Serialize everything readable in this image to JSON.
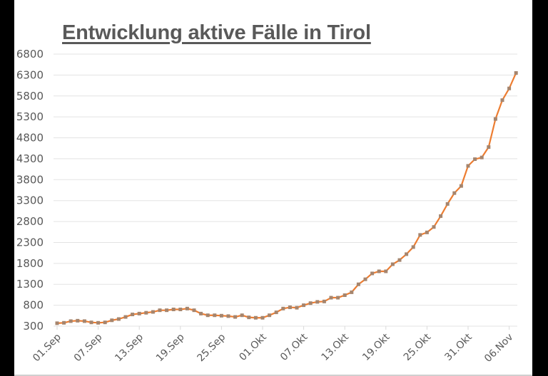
{
  "chart_data": {
    "type": "line",
    "title": "Entwicklung aktive Fälle in Tirol",
    "xlabel": "",
    "ylabel": "",
    "ylim": [
      300,
      6800
    ],
    "yticks": [
      300,
      800,
      1300,
      1800,
      2300,
      2800,
      3300,
      3800,
      4300,
      4800,
      5300,
      5800,
      6300,
      6800
    ],
    "xtick_labels": [
      "01.Sep",
      "07.Sep",
      "13.Sep",
      "19.Sep",
      "25.Sep",
      "01.Okt",
      "07.Okt",
      "13.Okt",
      "19.Okt",
      "25.Okt",
      "31.Okt",
      "06.Nov"
    ],
    "grid": "horizontal",
    "legend": "none",
    "line_color": "#ED7D31",
    "marker_color": "#A5856E",
    "x_start": "01.Sep",
    "x_end": "07.Nov",
    "series": [
      {
        "name": "aktive Fälle",
        "values": [
          370,
          380,
          420,
          430,
          420,
          390,
          380,
          390,
          440,
          470,
          520,
          580,
          600,
          620,
          640,
          680,
          680,
          700,
          700,
          720,
          680,
          600,
          560,
          560,
          550,
          540,
          520,
          560,
          510,
          500,
          500,
          560,
          630,
          720,
          750,
          740,
          800,
          850,
          880,
          890,
          980,
          980,
          1040,
          1110,
          1300,
          1420,
          1560,
          1610,
          1610,
          1780,
          1880,
          2020,
          2190,
          2480,
          2540,
          2670,
          2930,
          3220,
          3480,
          3650,
          4130,
          4290,
          4330,
          4580,
          5250,
          5700,
          5980,
          6350
        ]
      }
    ]
  }
}
